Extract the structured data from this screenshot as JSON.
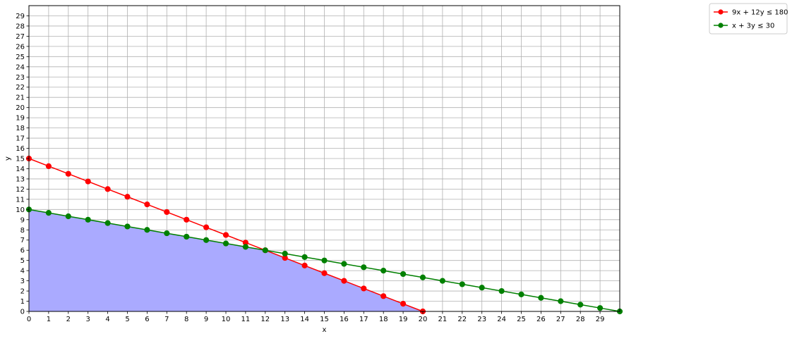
{
  "chart_data": {
    "type": "line",
    "xlabel": "x",
    "ylabel": "y",
    "xlim": [
      0,
      30
    ],
    "ylim": [
      0,
      30
    ],
    "x_ticks": [
      0,
      1,
      2,
      3,
      4,
      5,
      6,
      7,
      8,
      9,
      10,
      11,
      12,
      13,
      14,
      15,
      16,
      17,
      18,
      19,
      20,
      21,
      22,
      23,
      24,
      25,
      26,
      27,
      28,
      29
    ],
    "y_ticks": [
      0,
      1,
      2,
      3,
      4,
      5,
      6,
      7,
      8,
      9,
      10,
      11,
      12,
      13,
      14,
      15,
      16,
      17,
      18,
      19,
      20,
      21,
      22,
      23,
      24,
      25,
      26,
      27,
      28,
      29
    ],
    "grid": true,
    "legend_position": "outside top-right",
    "series": [
      {
        "name": "9x + 12y ≤ 180",
        "color": "#ff0000",
        "marker": "circle",
        "x": [
          0,
          1,
          2,
          3,
          4,
          5,
          6,
          7,
          8,
          9,
          10,
          11,
          12,
          13,
          14,
          15,
          16,
          17,
          18,
          19,
          20
        ],
        "y": [
          15,
          14.25,
          13.5,
          12.75,
          12,
          11.25,
          10.5,
          9.75,
          9,
          8.25,
          7.5,
          6.75,
          6,
          5.25,
          4.5,
          3.75,
          3,
          2.25,
          1.5,
          0.75,
          0
        ]
      },
      {
        "name": "x + 3y ≤ 30",
        "color": "#008000",
        "marker": "circle",
        "x": [
          0,
          1,
          2,
          3,
          4,
          5,
          6,
          7,
          8,
          9,
          10,
          11,
          12,
          13,
          14,
          15,
          16,
          17,
          18,
          19,
          20,
          21,
          22,
          23,
          24,
          25,
          26,
          27,
          28,
          29,
          30
        ],
        "y": [
          10,
          9.667,
          9.333,
          9,
          8.667,
          8.333,
          8,
          7.667,
          7.333,
          7,
          6.667,
          6.333,
          6,
          5.667,
          5.333,
          5,
          4.667,
          4.333,
          4,
          3.667,
          3.333,
          3,
          2.667,
          2.333,
          2,
          1.667,
          1.333,
          1,
          0.667,
          0.333,
          0
        ]
      }
    ],
    "feasible_region": {
      "color": "#aaaaff",
      "vertices": [
        [
          0,
          0
        ],
        [
          0,
          10
        ],
        [
          12,
          6
        ],
        [
          20,
          0
        ]
      ]
    }
  }
}
